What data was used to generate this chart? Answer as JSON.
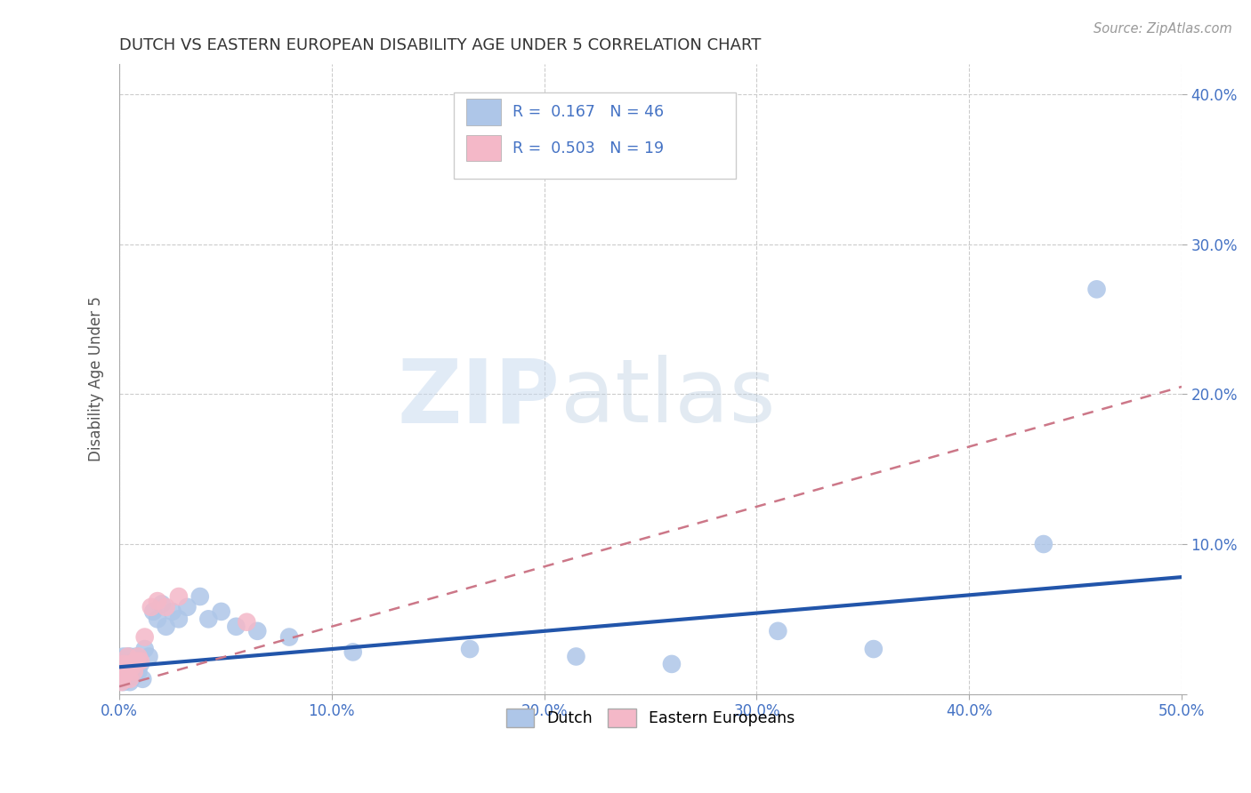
{
  "title": "DUTCH VS EASTERN EUROPEAN DISABILITY AGE UNDER 5 CORRELATION CHART",
  "source": "Source: ZipAtlas.com",
  "ylabel": "Disability Age Under 5",
  "xlim": [
    0.0,
    0.5
  ],
  "ylim": [
    0.0,
    0.42
  ],
  "dutch_R": 0.167,
  "dutch_N": 46,
  "ee_R": 0.503,
  "ee_N": 19,
  "dutch_color": "#aec6e8",
  "ee_color": "#f4b8c8",
  "dutch_line_color": "#2255aa",
  "ee_line_color": "#cc7788",
  "dutch_line_x": [
    0.0,
    0.5
  ],
  "dutch_line_y": [
    0.018,
    0.078
  ],
  "ee_line_x": [
    0.0,
    0.5
  ],
  "ee_line_y": [
    0.005,
    0.205
  ],
  "dutch_x": [
    0.001,
    0.001,
    0.002,
    0.002,
    0.002,
    0.003,
    0.003,
    0.003,
    0.004,
    0.004,
    0.004,
    0.005,
    0.005,
    0.005,
    0.006,
    0.006,
    0.007,
    0.007,
    0.008,
    0.008,
    0.009,
    0.01,
    0.011,
    0.012,
    0.014,
    0.016,
    0.018,
    0.02,
    0.022,
    0.025,
    0.028,
    0.032,
    0.038,
    0.042,
    0.048,
    0.055,
    0.065,
    0.08,
    0.11,
    0.165,
    0.215,
    0.26,
    0.31,
    0.355,
    0.435,
    0.46
  ],
  "dutch_y": [
    0.02,
    0.01,
    0.018,
    0.008,
    0.025,
    0.015,
    0.022,
    0.01,
    0.018,
    0.012,
    0.025,
    0.008,
    0.018,
    0.025,
    0.015,
    0.022,
    0.012,
    0.02,
    0.018,
    0.025,
    0.015,
    0.02,
    0.01,
    0.03,
    0.025,
    0.055,
    0.05,
    0.06,
    0.045,
    0.055,
    0.05,
    0.058,
    0.065,
    0.05,
    0.055,
    0.045,
    0.042,
    0.038,
    0.028,
    0.03,
    0.025,
    0.02,
    0.042,
    0.03,
    0.1,
    0.27
  ],
  "ee_x": [
    0.001,
    0.002,
    0.002,
    0.003,
    0.004,
    0.004,
    0.005,
    0.005,
    0.006,
    0.007,
    0.008,
    0.009,
    0.01,
    0.012,
    0.015,
    0.018,
    0.022,
    0.028,
    0.06
  ],
  "ee_y": [
    0.008,
    0.012,
    0.02,
    0.015,
    0.018,
    0.025,
    0.01,
    0.02,
    0.018,
    0.015,
    0.022,
    0.025,
    0.022,
    0.038,
    0.058,
    0.062,
    0.058,
    0.065,
    0.048
  ],
  "watermark_zip": "ZIP",
  "watermark_atlas": "atlas",
  "background_color": "#ffffff"
}
